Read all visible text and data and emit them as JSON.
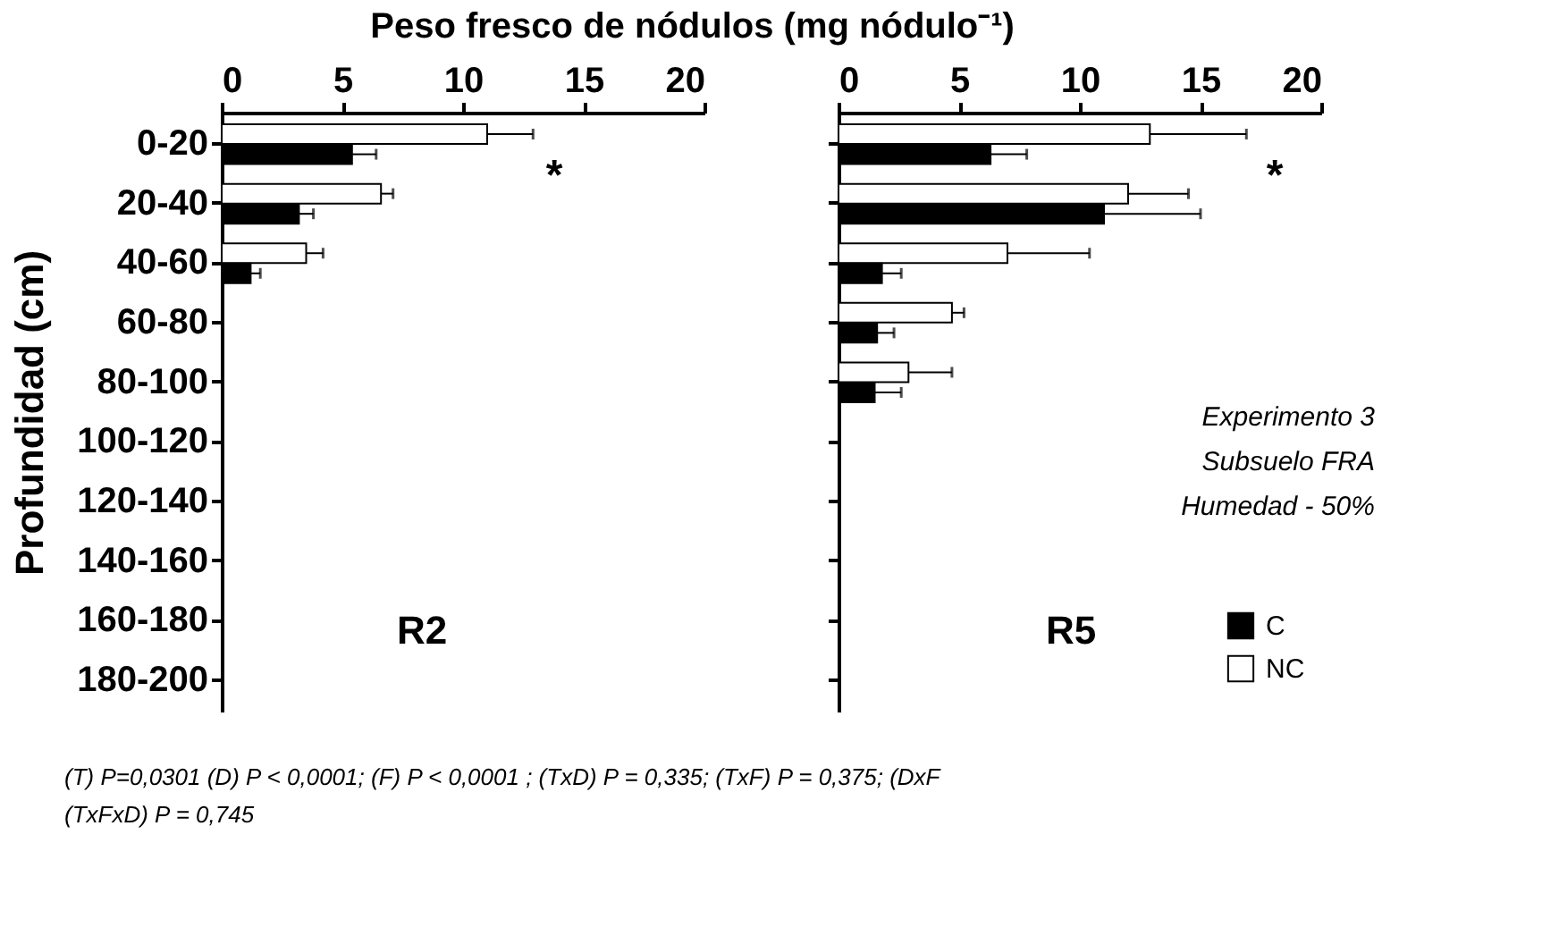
{
  "chart_data": [
    {
      "type": "bar",
      "orientation": "horizontal",
      "title": "Peso fresco de nódulos (mg nódulo⁻¹)",
      "ylabel": "Profundidad (cm)",
      "categories": [
        "0-20",
        "20-40",
        "40-60",
        "60-80",
        "80-100",
        "100-120",
        "120-140",
        "140-160",
        "160-180",
        "180-200"
      ],
      "series": [
        {
          "color": "#ffffff",
          "values": [
            11.0,
            6.6,
            3.5,
            null,
            null,
            null,
            null,
            null,
            null,
            null
          ],
          "errors": [
            1.9,
            0.5,
            0.7,
            null,
            null,
            null,
            null,
            null,
            null,
            null
          ]
        },
        {
          "color": "#000000",
          "values": [
            5.4,
            3.2,
            1.2,
            null,
            null,
            null,
            null,
            null,
            null,
            null
          ],
          "errors": [
            1.0,
            0.6,
            0.4,
            null,
            null,
            null,
            null,
            null,
            null,
            null
          ]
        }
      ],
      "xlim": [
        0,
        20
      ],
      "xticks": [
        0,
        5,
        10,
        15,
        20
      ],
      "grid": false,
      "annotations": [
        "*",
        "R2",
        "(T) P=0,0301 (D) P < 0,0001; (F) P < 0,0001 ; (TxD) P = 0,335;  (TxF) P = 0,375; (DxF",
        "(TxFxD) P = 0,745"
      ]
    },
    {
      "type": "bar",
      "orientation": "horizontal",
      "categories": [
        null,
        null,
        null,
        null,
        null,
        null,
        null,
        null,
        null,
        null
      ],
      "series": [
        {
          "name": "NC",
          "color": "#ffffff",
          "values": [
            12.9,
            12.0,
            7.0,
            4.7,
            2.9,
            null,
            null,
            null,
            null,
            null
          ],
          "errors": [
            4.0,
            2.5,
            3.4,
            0.5,
            1.8,
            null,
            null,
            null,
            null,
            null
          ]
        },
        {
          "name": "C",
          "color": "#000000",
          "values": [
            6.3,
            11.0,
            1.8,
            1.6,
            1.5,
            null,
            null,
            null,
            null,
            null
          ],
          "errors": [
            1.5,
            4.0,
            0.8,
            0.7,
            1.1,
            null,
            null,
            null,
            null,
            null
          ]
        }
      ],
      "xlim": [
        0,
        20
      ],
      "xticks": [
        0,
        5,
        10,
        15,
        20
      ],
      "grid": false,
      "legend": "bottom right",
      "tick_labels": "x",
      "annotations": [
        "*",
        "R5",
        "Experimento 3",
        "Subsuelo FRA",
        "Humedad - 50%"
      ]
    }
  ]
}
